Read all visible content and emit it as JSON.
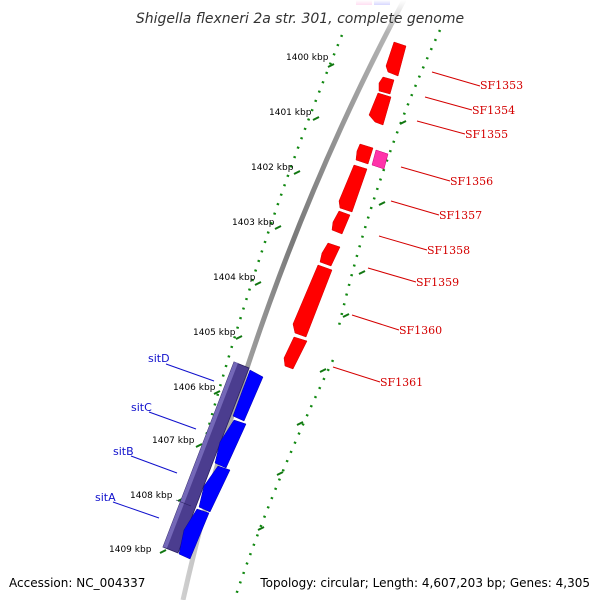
{
  "title": "Shigella flexneri 2a str. 301, complete genome",
  "footer": {
    "accession": "Accession: NC_004337",
    "topology": "Topology: circular; Length: 4,607,203 bp; Genes: 4,305"
  },
  "ruler_ticks": [
    "1400 kbp",
    "1401 kbp",
    "1402 kbp",
    "1403 kbp",
    "1404 kbp",
    "1405 kbp",
    "1406 kbp",
    "1407 kbp",
    "1408 kbp",
    "1409 kbp"
  ],
  "genes_reverse": [
    "SF1353",
    "SF1354",
    "SF1355",
    "SF1356",
    "SF1357",
    "SF1358",
    "SF1359",
    "SF1360",
    "SF1361"
  ],
  "genes_forward": [
    "sitD",
    "sitC",
    "sitB",
    "sitA"
  ],
  "colors": {
    "reverse_strand_gene": "#ff0000",
    "forward_strand_gene": "#0000ff",
    "pseudo_gene": "#ff33aa",
    "operon_block": "#4b3d8f",
    "dots": "#118811",
    "backbone": "#888888"
  }
}
